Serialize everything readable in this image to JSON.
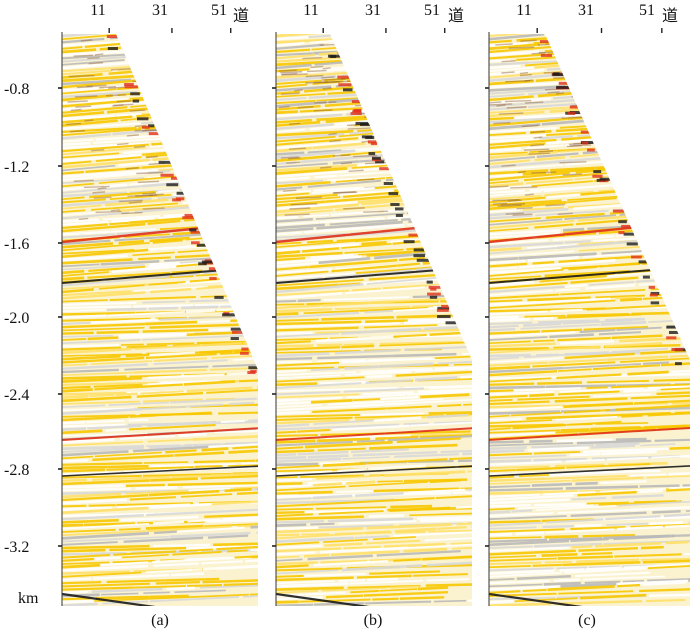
{
  "x_axis": {
    "tick_labels": [
      "11",
      "31",
      "51"
    ],
    "trace_unit": "道"
  },
  "y_axis": {
    "tick_labels": [
      "-0.8",
      "-1.2",
      "-1.6",
      "-2.0",
      "-2.4",
      "-2.8",
      "-3.2"
    ],
    "unit": "km"
  },
  "panels": [
    {
      "caption": "(a)"
    },
    {
      "caption": "(b)"
    },
    {
      "caption": "(c)"
    }
  ],
  "colors": {
    "background": "#ffffff",
    "positive_amp": "#f7c800",
    "strong_positive": "#e0301a",
    "negative_amp": "#1a1a1a",
    "weak": "#d8d8d8"
  }
}
